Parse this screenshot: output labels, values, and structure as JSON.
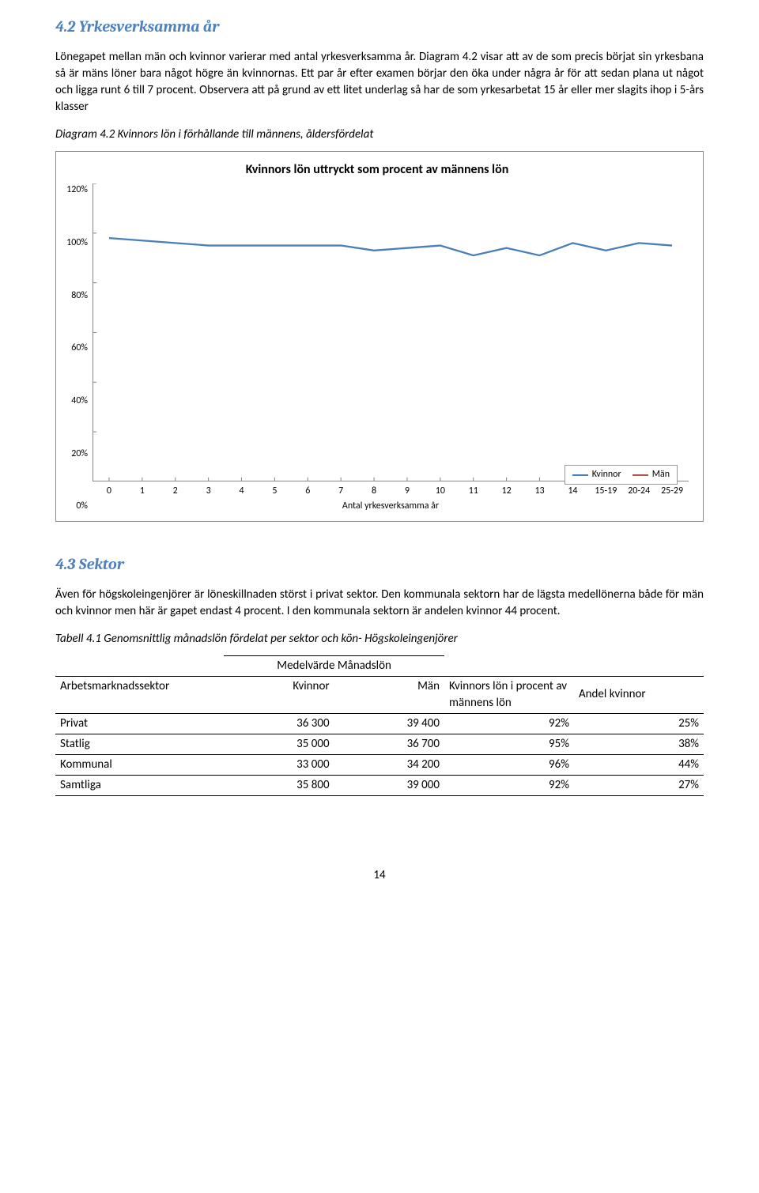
{
  "section42": {
    "heading": "4.2 Yrkesverksamma år",
    "para": "Lönegapet mellan män och kvinnor varierar med antal yrkesverksamma år. Diagram 4.2 visar att av de som precis börjat sin yrkesbana så är mäns löner bara något högre än kvinnornas. Ett par år efter examen börjar den öka under några år för att sedan plana ut något och ligga runt 6 till 7 procent. Observera att på grund av ett litet underlag så har de som yrkesarbetat 15 år eller mer slagits ihop i 5-års klasser",
    "caption": "Diagram 4.2 Kvinnors lön i förhållande till männens, åldersfördelat"
  },
  "chart": {
    "type": "line",
    "title": "Kvinnors lön uttryckt som procent av männens lön",
    "x_label": "Antal yrkesverksamma år",
    "x_ticks": [
      "0",
      "1",
      "2",
      "3",
      "4",
      "5",
      "6",
      "7",
      "8",
      "9",
      "10",
      "11",
      "12",
      "13",
      "14",
      "15-19",
      "20-24",
      "25-29"
    ],
    "y_ticks": [
      "120%",
      "100%",
      "80%",
      "60%",
      "40%",
      "20%",
      "0%"
    ],
    "ylim": [
      0,
      120
    ],
    "series": {
      "kvinnor": {
        "label": "Kvinnor",
        "color": "#4a7ebb",
        "width": 2.2,
        "values": [
          98,
          97,
          96,
          95,
          95,
          95,
          95,
          95,
          93,
          94,
          95,
          91,
          94,
          91,
          96,
          93,
          96,
          95
        ]
      },
      "man": {
        "label": "Män",
        "color": "#be4b48",
        "width": 2.2
      }
    },
    "axis_color": "#888888",
    "background": "#ffffff"
  },
  "section43": {
    "heading": "4.3 Sektor",
    "para": "Även för högskoleingenjörer är löneskillnaden störst i privat sektor. Den kommunala sektorn har de lägsta medellönerna både för män och kvinnor men här är gapet endast 4 procent. I den kommunala sektorn är andelen kvinnor 44 procent.",
    "caption": "Tabell 4.1 Genomsnittlig månadslön fördelat per sektor och kön- Högskoleingenjörer"
  },
  "table": {
    "super_header": "Medelvärde Månadslön",
    "columns": [
      "Arbetsmarknadssektor",
      "Kvinnor",
      "Män",
      "Kvinnors lön i procent av männens lön",
      "Andel kvinnor"
    ],
    "col_widths": [
      "26%",
      "17%",
      "17%",
      "20%",
      "20%"
    ],
    "rows": [
      [
        "Privat",
        "36 300",
        "39 400",
        "92%",
        "25%"
      ],
      [
        "Statlig",
        "35 000",
        "36 700",
        "95%",
        "38%"
      ],
      [
        "Kommunal",
        "33 000",
        "34 200",
        "96%",
        "44%"
      ],
      [
        "Samtliga",
        "35 800",
        "39 000",
        "92%",
        "27%"
      ]
    ]
  },
  "page_number": "14"
}
